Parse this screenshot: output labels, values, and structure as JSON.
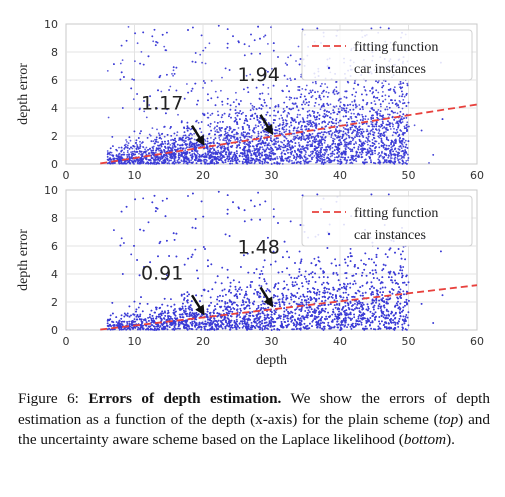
{
  "chart_data": [
    {
      "type": "scatter",
      "title": "",
      "xlabel": "",
      "ylabel": "depth error",
      "xlim": [
        0,
        60
      ],
      "ylim": [
        0,
        10
      ],
      "xticks": [
        "0",
        "10",
        "20",
        "30",
        "40",
        "50",
        "60"
      ],
      "yticks": [
        "0",
        "2",
        "4",
        "6",
        "8",
        "10"
      ],
      "grid": true,
      "legend_position": "top-right",
      "series": [
        {
          "name": "fitting function",
          "kind": "line",
          "style": "dashed",
          "color": "#e8413d",
          "x": [
            5,
            60
          ],
          "y": [
            0.04,
            4.25
          ]
        },
        {
          "name": "car instances",
          "kind": "scatter",
          "color": "#3b3bd6",
          "x_range": [
            5,
            55
          ],
          "y_range": [
            0,
            10
          ],
          "count": 6000
        }
      ],
      "annotations": [
        {
          "text": "1.17",
          "x": 20,
          "y": 1.17
        },
        {
          "text": "1.94",
          "x": 30,
          "y": 1.94
        }
      ]
    },
    {
      "type": "scatter",
      "title": "",
      "xlabel": "depth",
      "ylabel": "depth error",
      "xlim": [
        0,
        60
      ],
      "ylim": [
        0,
        10
      ],
      "xticks": [
        "0",
        "10",
        "20",
        "30",
        "40",
        "50",
        "60"
      ],
      "yticks": [
        "0",
        "2",
        "4",
        "6",
        "8",
        "10"
      ],
      "grid": true,
      "legend_position": "top-right",
      "series": [
        {
          "name": "fitting function",
          "kind": "line",
          "style": "dashed",
          "color": "#e8413d",
          "x": [
            5,
            60
          ],
          "y": [
            0.03,
            3.2
          ]
        },
        {
          "name": "car instances",
          "kind": "scatter",
          "color": "#3b3bd6",
          "x_range": [
            5,
            55
          ],
          "y_range": [
            0,
            10
          ],
          "count": 6000
        }
      ],
      "annotations": [
        {
          "text": "0.91",
          "x": 20,
          "y": 0.91
        },
        {
          "text": "1.48",
          "x": 30,
          "y": 1.48
        }
      ]
    }
  ],
  "caption": {
    "label": "Figure 6: ",
    "bold": "Errors of depth estimation.",
    "text1": " We show the errors of depth estimation as a function of the depth (x-axis) for the plain scheme (",
    "italic1": "top",
    "text2": ") and the uncertainty aware scheme based on the Laplace likelihood (",
    "italic2": "bottom",
    "text3": ")."
  }
}
